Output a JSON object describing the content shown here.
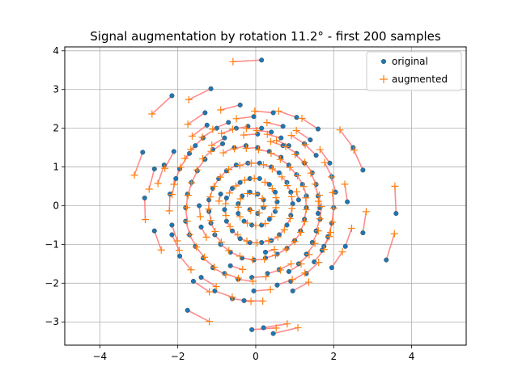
{
  "chart_data": {
    "type": "scatter",
    "title": "Signal augmentation by rotation 11.2° - first 200 samples",
    "xlabel": "",
    "ylabel": "",
    "xlim": [
      -4.9,
      5.4
    ],
    "ylim": [
      -3.6,
      4.1
    ],
    "xticks": [
      -4,
      -2,
      0,
      2,
      4
    ],
    "yticks": [
      -3,
      -2,
      -1,
      0,
      1,
      2,
      3,
      4
    ],
    "xtick_labels": [
      "−4",
      "−2",
      "0",
      "2",
      "4"
    ],
    "ytick_labels": [
      "−3",
      "−2",
      "−1",
      "0",
      "1",
      "2",
      "3",
      "4"
    ],
    "grid": true,
    "rotation_deg": 11.2,
    "legend_position": "top-right",
    "legend": [
      {
        "label": "original",
        "marker": "dot",
        "color": "#1f77b4"
      },
      {
        "label": "augmented",
        "marker": "plus",
        "color": "#ff7f0e"
      }
    ],
    "connector_color": "#ff6f6f",
    "series": [
      {
        "name": "original",
        "points": [
          [
            0.15,
            3.76
          ],
          [
            -1.15,
            3.02
          ],
          [
            -2.15,
            2.84
          ],
          [
            -0.4,
            2.6
          ],
          [
            -1.3,
            2.4
          ],
          [
            0.45,
            2.4
          ],
          [
            1.05,
            2.28
          ],
          [
            1.6,
            1.98
          ],
          [
            -2.9,
            1.38
          ],
          [
            -2.1,
            1.4
          ],
          [
            -2.35,
            1.05
          ],
          [
            2.5,
            1.5
          ],
          [
            2.75,
            0.92
          ],
          [
            -2.85,
            0.2
          ],
          [
            -2.2,
            0.3
          ],
          [
            3.6,
            -0.2
          ],
          [
            2.75,
            -0.7
          ],
          [
            3.35,
            -1.4
          ],
          [
            -2.15,
            -0.75
          ],
          [
            -1.6,
            -1.95
          ],
          [
            1.95,
            -1.6
          ],
          [
            -1.75,
            -2.7
          ],
          [
            0.95,
            -2.2
          ],
          [
            -0.1,
            -3.2
          ],
          [
            0.2,
            -3.15
          ],
          [
            0.45,
            -3.3
          ],
          [
            -1.25,
            2.08
          ],
          [
            -1.0,
            2.0
          ],
          [
            -0.8,
            1.75
          ],
          [
            -0.5,
            2.0
          ],
          [
            -0.2,
            2.05
          ],
          [
            0.15,
            2.0
          ],
          [
            0.4,
            1.9
          ],
          [
            0.65,
            1.75
          ],
          [
            0.85,
            1.55
          ],
          [
            1.05,
            1.35
          ],
          [
            1.25,
            1.1
          ],
          [
            1.45,
            0.85
          ],
          [
            1.55,
            0.55
          ],
          [
            1.6,
            0.25
          ],
          [
            1.65,
            -0.05
          ],
          [
            1.65,
            -0.35
          ],
          [
            1.55,
            -0.65
          ],
          [
            1.45,
            -0.95
          ],
          [
            1.3,
            -1.25
          ],
          [
            1.1,
            -1.5
          ],
          [
            0.85,
            -1.7
          ],
          [
            0.6,
            -1.65
          ],
          [
            0.3,
            -1.75
          ],
          [
            -0.1,
            -1.85
          ],
          [
            -0.45,
            -1.9
          ],
          [
            -0.8,
            -1.75
          ],
          [
            -1.1,
            -1.6
          ],
          [
            -1.35,
            -1.35
          ],
          [
            -1.55,
            -1.05
          ],
          [
            -1.7,
            -0.75
          ],
          [
            -1.8,
            -0.4
          ],
          [
            -1.8,
            -0.05
          ],
          [
            -1.75,
            0.3
          ],
          [
            -1.65,
            0.6
          ],
          [
            -1.5,
            0.9
          ],
          [
            -1.3,
            1.2
          ],
          [
            -1.1,
            1.45
          ],
          [
            -0.85,
            1.6
          ],
          [
            -0.55,
            1.5
          ],
          [
            -0.25,
            1.55
          ],
          [
            0.05,
            1.5
          ],
          [
            0.35,
            1.4
          ],
          [
            0.65,
            1.25
          ],
          [
            0.85,
            1.05
          ],
          [
            1.05,
            0.8
          ],
          [
            1.2,
            0.55
          ],
          [
            1.3,
            0.25
          ],
          [
            1.3,
            -0.05
          ],
          [
            1.25,
            -0.35
          ],
          [
            1.15,
            -0.65
          ],
          [
            1.0,
            -0.9
          ],
          [
            0.8,
            -1.1
          ],
          [
            0.55,
            -1.25
          ],
          [
            0.25,
            -1.35
          ],
          [
            -0.05,
            -1.4
          ],
          [
            -0.35,
            -1.35
          ],
          [
            -0.65,
            -1.2
          ],
          [
            -0.9,
            -1.0
          ],
          [
            -1.05,
            -0.75
          ],
          [
            -1.15,
            -0.45
          ],
          [
            -1.2,
            -0.15
          ],
          [
            -1.2,
            0.15
          ],
          [
            -1.1,
            0.45
          ],
          [
            -0.95,
            0.7
          ],
          [
            -0.75,
            0.9
          ],
          [
            -0.5,
            1.05
          ],
          [
            -0.2,
            1.1
          ],
          [
            0.1,
            1.1
          ],
          [
            0.4,
            1.0
          ],
          [
            0.6,
            0.85
          ],
          [
            0.8,
            0.6
          ],
          [
            0.9,
            0.35
          ],
          [
            0.95,
            0.05
          ],
          [
            0.9,
            -0.25
          ],
          [
            0.8,
            -0.5
          ],
          [
            0.6,
            -0.75
          ],
          [
            0.4,
            -0.9
          ],
          [
            0.15,
            -0.95
          ],
          [
            -0.15,
            -0.95
          ],
          [
            -0.4,
            -0.85
          ],
          [
            -0.6,
            -0.65
          ],
          [
            -0.75,
            -0.4
          ],
          [
            -0.8,
            -0.1
          ],
          [
            -0.75,
            0.2
          ],
          [
            -0.6,
            0.45
          ],
          [
            -0.4,
            0.6
          ],
          [
            -0.15,
            0.7
          ],
          [
            0.1,
            0.7
          ],
          [
            0.35,
            0.55
          ],
          [
            0.5,
            0.35
          ],
          [
            0.55,
            0.1
          ],
          [
            0.5,
            -0.15
          ],
          [
            0.35,
            -0.35
          ],
          [
            0.15,
            -0.5
          ],
          [
            -0.1,
            -0.5
          ],
          [
            -0.3,
            -0.4
          ],
          [
            -0.45,
            -0.2
          ],
          [
            -0.45,
            0.05
          ],
          [
            -0.35,
            0.25
          ],
          [
            -0.15,
            0.35
          ],
          [
            0.05,
            0.3
          ],
          [
            0.2,
            0.15
          ],
          [
            0.2,
            -0.05
          ],
          [
            0.05,
            -0.2
          ],
          [
            -0.15,
            -0.1
          ],
          [
            1.9,
            1.1
          ],
          [
            1.95,
            0.75
          ],
          [
            2.05,
            0.35
          ],
          [
            2.0,
            -0.05
          ],
          [
            1.95,
            -0.45
          ],
          [
            1.85,
            -0.8
          ],
          [
            1.7,
            -1.15
          ],
          [
            1.5,
            -1.45
          ],
          [
            1.3,
            -1.75
          ],
          [
            0.55,
            -2.05
          ],
          [
            -0.05,
            -2.2
          ],
          [
            -0.6,
            -2.4
          ],
          [
            -1.05,
            -2.2
          ],
          [
            -1.4,
            -1.85
          ],
          [
            -1.95,
            -1.3
          ],
          [
            -2.15,
            -0.5
          ],
          [
            -2.05,
            0.7
          ],
          [
            -1.7,
            1.35
          ],
          [
            -1.35,
            1.75
          ],
          [
            -0.7,
            2.15
          ],
          [
            -0.05,
            2.3
          ],
          [
            0.7,
            2.05
          ],
          [
            1.25,
            1.6
          ],
          [
            1.55,
            1.3
          ],
          [
            -2.6,
            0.95
          ],
          [
            -2.6,
            -0.65
          ],
          [
            2.3,
            -1.05
          ],
          [
            2.35,
            0.1
          ],
          [
            -1.45,
            0.0
          ],
          [
            -1.4,
            -0.55
          ],
          [
            1.6,
            -0.2
          ],
          [
            0.7,
            1.55
          ],
          [
            -0.9,
            0.3
          ],
          [
            0.25,
            -1.2
          ],
          [
            1.1,
            0.15
          ],
          [
            -0.65,
            -1.55
          ],
          [
            0.05,
            1.85
          ],
          [
            -1.95,
            0.95
          ],
          [
            1.75,
            -1.05
          ],
          [
            0.9,
            -1.95
          ],
          [
            -0.3,
            -2.45
          ],
          [
            -1.55,
            1.55
          ],
          [
            1.4,
            1.7
          ]
        ]
      }
    ]
  }
}
